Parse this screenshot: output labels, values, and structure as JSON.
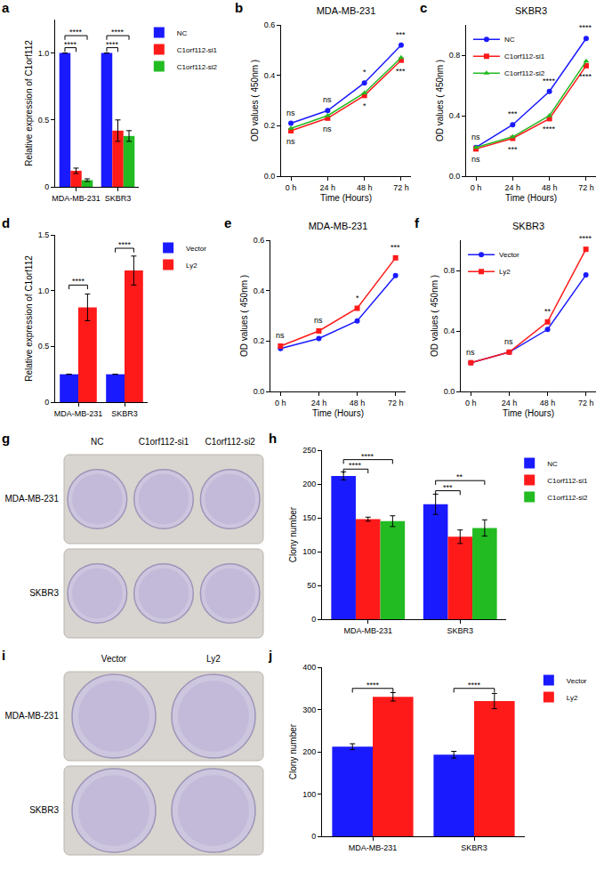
{
  "chart_data": [
    {
      "panel": "a",
      "type": "bar",
      "y_label": "Relative expression of C1orf112",
      "categories": [
        "MDA-MB-231",
        "SKBR3"
      ],
      "series": [
        {
          "name": "NC",
          "color": "#1a1aff",
          "values": [
            1,
            1
          ],
          "errors": [
            0,
            0
          ]
        },
        {
          "name": "C1orf112-si1",
          "color": "#ff1a1a",
          "values": [
            0.12,
            0.42
          ],
          "errors": [
            0.02,
            0.08
          ]
        },
        {
          "name": "C1orf112-si2",
          "color": "#22bb22",
          "values": [
            0.05,
            0.38
          ],
          "errors": [
            0.01,
            0.04
          ]
        }
      ],
      "ylim": [
        0,
        1.25
      ],
      "yticks": [
        0,
        0.5,
        {
          "value": 1,
          "label": "1.0"
        }
      ],
      "grid": false,
      "legend": "right",
      "comparisons": [
        {
          "category": "MDA-MB-231",
          "from": "NC",
          "to": "C1orf112-si1",
          "y": 1.04,
          "label": "****"
        },
        {
          "category": "MDA-MB-231",
          "from": "NC",
          "to": "C1orf112-si2",
          "y": 1.13,
          "label": "****"
        },
        {
          "category": "SKBR3",
          "from": "NC",
          "to": "C1orf112-si1",
          "y": 1.04,
          "label": "****"
        },
        {
          "category": "SKBR3",
          "from": "NC",
          "to": "C1orf112-si2",
          "y": 1.13,
          "label": "****"
        }
      ]
    },
    {
      "panel": "b",
      "type": "line",
      "title": "MDA-MB-231",
      "x_label": "Time (Hours)",
      "y_label": "OD values ( 450nm )",
      "categories": [
        "0 h",
        "24 h",
        "48 h",
        "72 h"
      ],
      "series": [
        {
          "color": "#1a1aff",
          "marker": "circle",
          "values": [
            0.21,
            0.26,
            0.37,
            0.52
          ]
        },
        {
          "color": "#ff1a1a",
          "marker": "square",
          "values": [
            0.18,
            0.23,
            0.32,
            0.46
          ]
        },
        {
          "color": "#22bb22",
          "marker": "triangle",
          "values": [
            0.19,
            0.24,
            0.33,
            0.47
          ]
        }
      ],
      "ylim": [
        0,
        0.6
      ],
      "yticks": [
        {
          "value": 0,
          "label": "0.0"
        },
        0.2,
        0.4,
        0.6
      ],
      "grid": false,
      "annotations_above": [
        "ns",
        "ns",
        "*",
        "***"
      ],
      "annotations_below": [
        "ns",
        "ns",
        "*",
        "***"
      ]
    },
    {
      "panel": "c",
      "type": "line",
      "title": "SKBR3",
      "x_label": "Time (Hours)",
      "y_label": "OD values ( 450nm )",
      "categories": [
        "0 h",
        "24 h",
        "48 h",
        "72 h"
      ],
      "series": [
        {
          "name": "NC",
          "color": "#1a1aff",
          "marker": "circle",
          "values": [
            0.19,
            0.34,
            0.56,
            0.91
          ]
        },
        {
          "name": "C1orf112-si1",
          "color": "#ff1a1a",
          "marker": "square",
          "values": [
            0.18,
            0.25,
            0.38,
            0.73
          ]
        },
        {
          "name": "C1orf112-si2",
          "color": "#22bb22",
          "marker": "triangle",
          "values": [
            0.19,
            0.26,
            0.4,
            0.76
          ]
        }
      ],
      "ylim": [
        0,
        1.0
      ],
      "yticks": [
        {
          "value": 0,
          "label": "0.0"
        },
        0.4,
        0.8
      ],
      "grid": false,
      "legend": "top left",
      "annotations_above": [
        "ns",
        "***",
        "****",
        "****"
      ],
      "annotations_below": [
        "ns",
        "***",
        "****",
        "****"
      ]
    },
    {
      "panel": "d",
      "type": "bar",
      "y_label": "Relative expression of C1orf112",
      "categories": [
        "MDA-MB-231",
        "SKBR3"
      ],
      "series": [
        {
          "name": "Vector",
          "color": "#1a1aff",
          "values": [
            0.25,
            0.25
          ],
          "errors": [
            0,
            0
          ]
        },
        {
          "name": "Ly2",
          "color": "#ff1a1a",
          "values": [
            0.85,
            1.18
          ],
          "errors": [
            0.12,
            0.13
          ]
        }
      ],
      "ylim": [
        0,
        1.5
      ],
      "yticks": [
        0,
        0.5,
        {
          "value": 1,
          "label": "1.0"
        },
        1.5
      ],
      "grid": false,
      "legend": "right",
      "comparisons": [
        {
          "category": "MDA-MB-231",
          "from": "Vector",
          "to": "Ly2",
          "y": 1.05,
          "label": "****"
        },
        {
          "category": "SKBR3",
          "from": "Vector",
          "to": "Ly2",
          "y": 1.38,
          "label": "****"
        }
      ]
    },
    {
      "panel": "e",
      "type": "line",
      "title": "MDA-MB-231",
      "x_label": "Time (Hours)",
      "y_label": "OD values ( 450nm )",
      "categories": [
        "0 h",
        "24 h",
        "48 h",
        "72 h"
      ],
      "series": [
        {
          "color": "#1a1aff",
          "marker": "circle",
          "values": [
            0.17,
            0.21,
            0.28,
            0.46
          ]
        },
        {
          "color": "#ff1a1a",
          "marker": "square",
          "values": [
            0.18,
            0.24,
            0.33,
            0.53
          ]
        }
      ],
      "ylim": [
        0,
        0.6
      ],
      "yticks": [
        {
          "value": 0,
          "label": "0.0"
        },
        0.2,
        0.4,
        0.6
      ],
      "grid": false,
      "annotations_above": [
        "ns",
        "ns",
        "*",
        "***"
      ]
    },
    {
      "panel": "f",
      "type": "line",
      "title": "SKBR3",
      "x_label": "Time (Hours)",
      "y_label": "OD values ( 450nm )",
      "categories": [
        "0 h",
        "24 h",
        "48 h",
        "72 h"
      ],
      "series": [
        {
          "name": "Vector",
          "color": "#1a1aff",
          "marker": "circle",
          "values": [
            0.19,
            0.26,
            0.41,
            0.77
          ]
        },
        {
          "name": "Ly2",
          "color": "#ff1a1a",
          "marker": "square",
          "values": [
            0.19,
            0.26,
            0.46,
            0.94
          ]
        }
      ],
      "ylim": [
        0,
        1.0
      ],
      "yticks": [
        {
          "value": 0,
          "label": "0.0"
        },
        0.4,
        0.8
      ],
      "grid": false,
      "legend": "top left",
      "annotations_above": [
        "ns",
        "ns",
        "**",
        "****"
      ]
    },
    {
      "panel": "g",
      "type": "image",
      "columns": [
        "NC",
        "C1orf112-si1",
        "C1orf112-si2"
      ],
      "rows": [
        "MDA-MB-231",
        "SKBR3"
      ]
    },
    {
      "panel": "h",
      "type": "bar",
      "y_label": "Clony number",
      "categories": [
        "MDA-MB-231",
        "SKBR3"
      ],
      "series": [
        {
          "name": "NC",
          "color": "#1a1aff",
          "values": [
            212,
            170
          ],
          "errors": [
            6,
            15
          ]
        },
        {
          "name": "C1orf112-si1",
          "color": "#ff1a1a",
          "values": [
            148,
            122
          ],
          "errors": [
            3,
            10
          ]
        },
        {
          "name": "C1orf112-si2",
          "color": "#22bb22",
          "values": [
            145,
            135
          ],
          "errors": [
            8,
            12
          ]
        }
      ],
      "ylim": [
        0,
        250
      ],
      "yticks": [
        0,
        50,
        100,
        150,
        200,
        250
      ],
      "grid": false,
      "legend": "right",
      "comparisons": [
        {
          "category": "MDA-MB-231",
          "from": "NC",
          "to": "C1orf112-si1",
          "y": 222,
          "label": "****"
        },
        {
          "category": "MDA-MB-231",
          "from": "NC",
          "to": "C1orf112-si2",
          "y": 236,
          "label": "****"
        },
        {
          "category": "SKBR3",
          "from": "NC",
          "to": "C1orf112-si1",
          "y": 190,
          "label": "***"
        },
        {
          "category": "SKBR3",
          "from": "NC",
          "to": "C1orf112-si2",
          "y": 205,
          "label": "**"
        }
      ]
    },
    {
      "panel": "i",
      "type": "image",
      "columns": [
        "Vector",
        "Ly2"
      ],
      "rows": [
        "MDA-MB-231",
        "SKBR3"
      ]
    },
    {
      "panel": "j",
      "type": "bar",
      "y_label": "Clony number",
      "categories": [
        "MDA-MB-231",
        "SKBR3"
      ],
      "series": [
        {
          "name": "Vector",
          "color": "#1a1aff",
          "values": [
            212,
            193
          ],
          "errors": [
            7,
            8
          ]
        },
        {
          "name": "Ly2",
          "color": "#ff1a1a",
          "values": [
            330,
            320
          ],
          "errors": [
            10,
            18
          ]
        }
      ],
      "ylim": [
        0,
        400
      ],
      "yticks": [
        0,
        100,
        200,
        300,
        400
      ],
      "grid": false,
      "legend": "right",
      "comparisons": [
        {
          "category": "MDA-MB-231",
          "from": "Vector",
          "to": "Ly2",
          "y": 350,
          "label": "****"
        },
        {
          "category": "SKBR3",
          "from": "Vector",
          "to": "Ly2",
          "y": 350,
          "label": "****"
        }
      ]
    }
  ]
}
